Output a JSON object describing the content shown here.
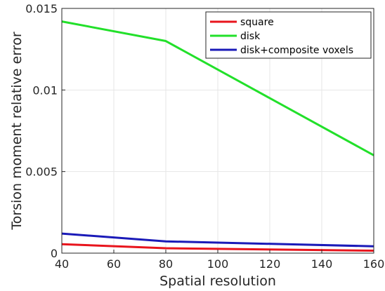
{
  "chart_data": {
    "type": "line",
    "title": "",
    "xlabel": "Spatial resolution",
    "ylabel": "Torsion moment relative error",
    "xlim": [
      40,
      160
    ],
    "ylim": [
      0,
      0.015
    ],
    "xticks": [
      40,
      60,
      80,
      100,
      120,
      140,
      160
    ],
    "xtick_labels": [
      "40",
      "60",
      "80",
      "100",
      "120",
      "140",
      "160"
    ],
    "yticks": [
      0,
      0.005,
      0.01,
      0.015
    ],
    "ytick_labels": [
      "0",
      "0.005",
      "0.01",
      "0.015"
    ],
    "grid": true,
    "legend_position": "top-right",
    "series": [
      {
        "name": "square",
        "color": "#e8141c",
        "x": [
          40,
          80,
          160
        ],
        "y": [
          0.00055,
          0.0003,
          0.00015
        ]
      },
      {
        "name": "disk",
        "color": "#22e02a",
        "x": [
          40,
          80,
          160
        ],
        "y": [
          0.0142,
          0.013,
          0.006
        ]
      },
      {
        "name": "disk+composite voxels",
        "color": "#1a1ab8",
        "x": [
          40,
          80,
          160
        ],
        "y": [
          0.0012,
          0.00072,
          0.00042
        ]
      }
    ]
  }
}
